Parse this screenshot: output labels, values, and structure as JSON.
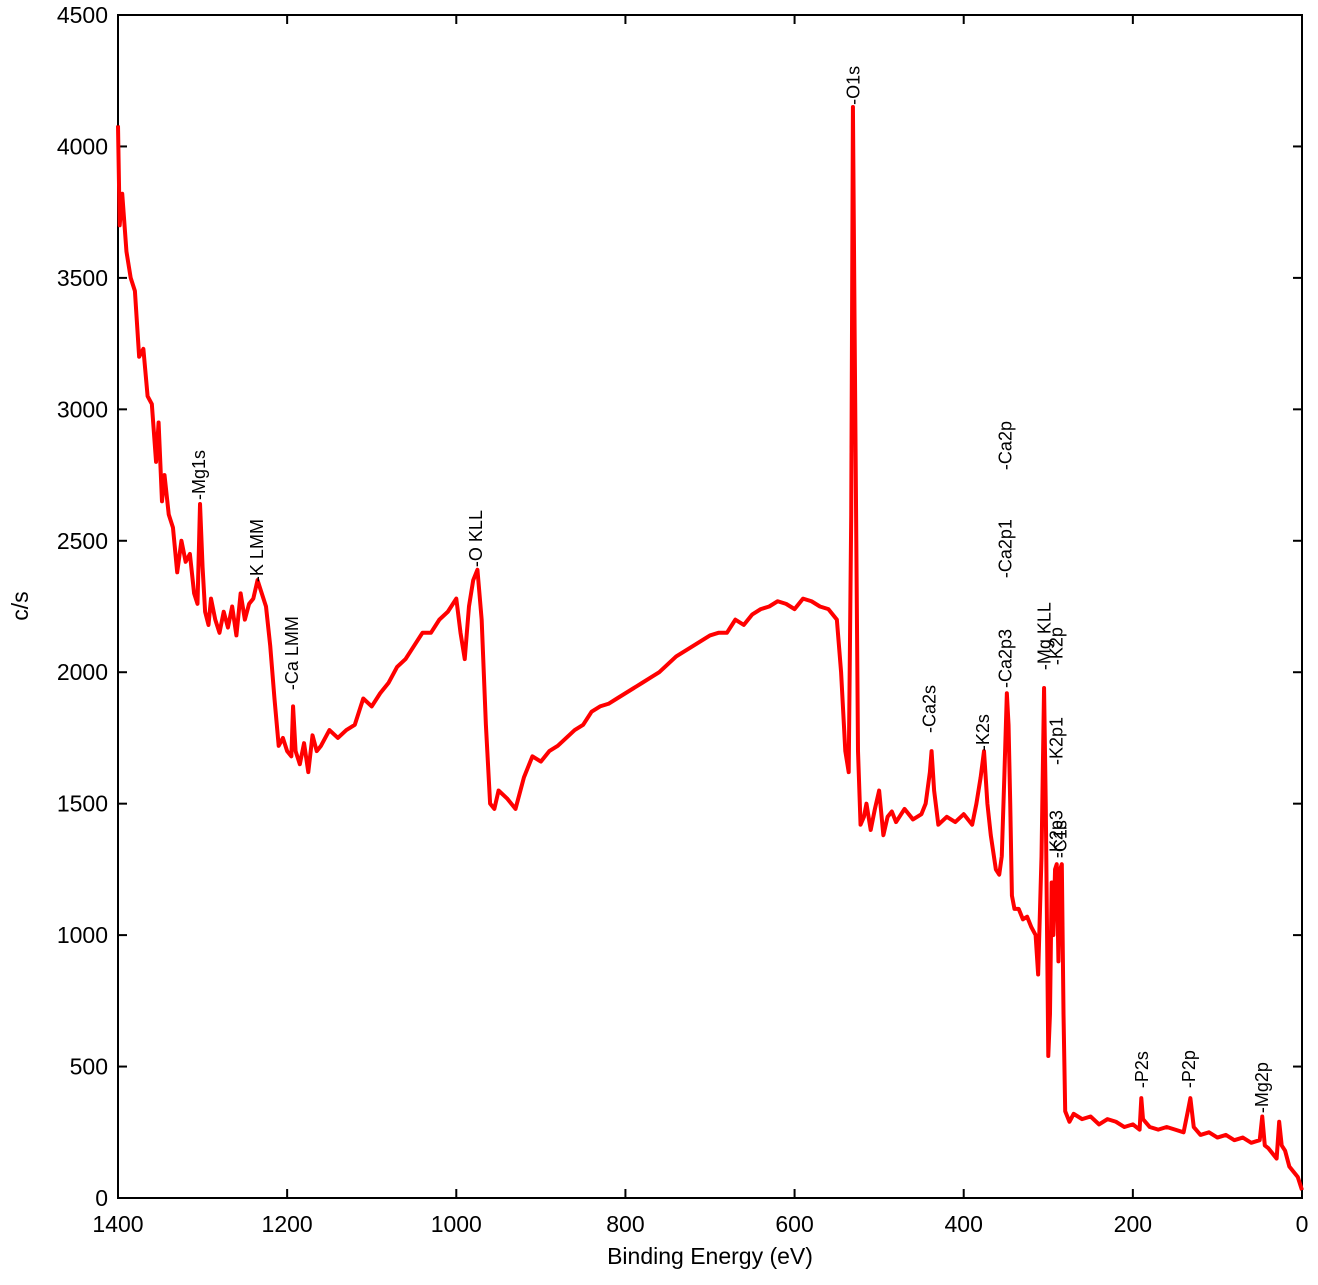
{
  "chart_data": {
    "type": "line",
    "xlabel": "Binding Energy (eV)",
    "ylabel": "c/s",
    "xlim": [
      1400,
      0
    ],
    "ylim": [
      0,
      4500
    ],
    "xticks": [
      1400,
      1200,
      1000,
      800,
      600,
      400,
      200,
      0
    ],
    "yticks": [
      0,
      500,
      1000,
      1500,
      2000,
      2500,
      3000,
      3500,
      4000,
      4500
    ],
    "color": "#ff0000",
    "x": [
      1400,
      1398,
      1395,
      1390,
      1385,
      1380,
      1375,
      1370,
      1365,
      1360,
      1355,
      1352,
      1348,
      1345,
      1340,
      1335,
      1330,
      1325,
      1320,
      1315,
      1310,
      1306,
      1303,
      1300,
      1297,
      1293,
      1290,
      1285,
      1280,
      1275,
      1270,
      1265,
      1260,
      1255,
      1250,
      1245,
      1240,
      1235,
      1230,
      1225,
      1220,
      1215,
      1210,
      1205,
      1200,
      1195,
      1193,
      1190,
      1185,
      1180,
      1175,
      1170,
      1165,
      1160,
      1150,
      1140,
      1130,
      1120,
      1110,
      1100,
      1090,
      1080,
      1070,
      1060,
      1050,
      1040,
      1030,
      1020,
      1010,
      1000,
      995,
      990,
      985,
      980,
      975,
      970,
      965,
      960,
      955,
      950,
      940,
      930,
      920,
      910,
      900,
      890,
      880,
      870,
      860,
      850,
      840,
      830,
      820,
      810,
      800,
      790,
      780,
      770,
      760,
      750,
      740,
      730,
      720,
      710,
      700,
      690,
      680,
      670,
      660,
      650,
      640,
      630,
      620,
      610,
      600,
      590,
      580,
      570,
      560,
      550,
      545,
      540,
      536,
      533,
      531,
      529,
      527,
      525,
      522,
      518,
      515,
      510,
      505,
      500,
      495,
      490,
      485,
      480,
      470,
      460,
      450,
      445,
      440,
      438,
      435,
      430,
      420,
      410,
      400,
      390,
      385,
      380,
      376,
      372,
      368,
      362,
      358,
      355,
      352,
      349,
      347,
      345,
      343,
      340,
      335,
      330,
      325,
      320,
      315,
      312,
      308,
      305,
      303,
      300,
      298,
      296,
      294,
      292,
      290,
      288,
      286,
      284,
      282,
      280,
      275,
      270,
      260,
      250,
      240,
      230,
      220,
      210,
      200,
      192,
      190,
      188,
      180,
      170,
      160,
      150,
      140,
      135,
      132,
      128,
      120,
      110,
      100,
      90,
      80,
      70,
      60,
      50,
      47,
      44,
      40,
      35,
      30,
      27,
      24,
      20,
      15,
      10,
      5,
      0
    ],
    "values": [
      4080,
      3700,
      3820,
      3600,
      3500,
      3450,
      3200,
      3230,
      3050,
      3020,
      2800,
      2950,
      2650,
      2750,
      2600,
      2550,
      2380,
      2500,
      2420,
      2450,
      2300,
      2260,
      2640,
      2400,
      2230,
      2180,
      2280,
      2200,
      2150,
      2230,
      2170,
      2250,
      2140,
      2300,
      2200,
      2260,
      2280,
      2350,
      2300,
      2250,
      2100,
      1900,
      1720,
      1750,
      1700,
      1680,
      1870,
      1700,
      1650,
      1730,
      1620,
      1760,
      1700,
      1720,
      1780,
      1750,
      1780,
      1800,
      1900,
      1870,
      1920,
      1960,
      2020,
      2050,
      2100,
      2150,
      2150,
      2200,
      2230,
      2280,
      2150,
      2050,
      2250,
      2350,
      2390,
      2200,
      1800,
      1500,
      1480,
      1550,
      1520,
      1480,
      1600,
      1680,
      1660,
      1700,
      1720,
      1750,
      1780,
      1800,
      1850,
      1870,
      1880,
      1900,
      1920,
      1940,
      1960,
      1980,
      2000,
      2030,
      2060,
      2080,
      2100,
      2120,
      2140,
      2150,
      2150,
      2200,
      2180,
      2220,
      2240,
      2250,
      2270,
      2260,
      2240,
      2280,
      2270,
      2250,
      2240,
      2200,
      2000,
      1700,
      1620,
      2600,
      4150,
      3300,
      2500,
      1700,
      1420,
      1450,
      1500,
      1400,
      1480,
      1550,
      1380,
      1450,
      1470,
      1430,
      1480,
      1440,
      1460,
      1500,
      1620,
      1700,
      1550,
      1420,
      1450,
      1430,
      1460,
      1420,
      1500,
      1600,
      1700,
      1500,
      1380,
      1250,
      1230,
      1300,
      1600,
      1920,
      1800,
      1500,
      1150,
      1100,
      1100,
      1060,
      1070,
      1030,
      1000,
      850,
      1300,
      1940,
      1500,
      540,
      700,
      1200,
      1000,
      1250,
      1270,
      900,
      1250,
      1270,
      700,
      330,
      290,
      320,
      300,
      310,
      280,
      300,
      290,
      270,
      280,
      260,
      380,
      300,
      270,
      260,
      270,
      260,
      250,
      330,
      380,
      270,
      240,
      250,
      230,
      240,
      220,
      230,
      210,
      220,
      310,
      200,
      190,
      170,
      150,
      290,
      200,
      180,
      120,
      100,
      80,
      30
    ],
    "annotations": [
      {
        "text": "-Mg1s",
        "x": 1303,
        "y": 2655
      },
      {
        "text": "-K LMM",
        "x": 1234,
        "y": 2343
      },
      {
        "text": "-Ca LMM",
        "x": 1193,
        "y": 1932
      },
      {
        "text": "-O KLL",
        "x": 975,
        "y": 2400
      },
      {
        "text": "-O1s",
        "x": 529,
        "y": 4158
      },
      {
        "text": "-Ca2s",
        "x": 439,
        "y": 1769
      },
      {
        "text": "-K2s",
        "x": 376,
        "y": 1700
      },
      {
        "text": "-Ca2p",
        "x": 349,
        "y": 2769
      },
      {
        "text": "-Ca2p1",
        "x": 349,
        "y": 2358
      },
      {
        "text": "-Ca2p3",
        "x": 349,
        "y": 1940
      },
      {
        "text": "-Mg KLL",
        "x": 303,
        "y": 2008
      },
      {
        "text": "-K2p",
        "x": 289,
        "y": 2027
      },
      {
        "text": "-K2p1",
        "x": 289,
        "y": 1647
      },
      {
        "text": "-K2p3",
        "x": 289,
        "y": 1293
      },
      {
        "text": "-C1s",
        "x": 284,
        "y": 1293
      },
      {
        "text": "-P2s",
        "x": 188,
        "y": 418
      },
      {
        "text": "-P2p",
        "x": 132,
        "y": 418
      },
      {
        "text": "-Mg2p",
        "x": 46,
        "y": 323
      }
    ]
  }
}
